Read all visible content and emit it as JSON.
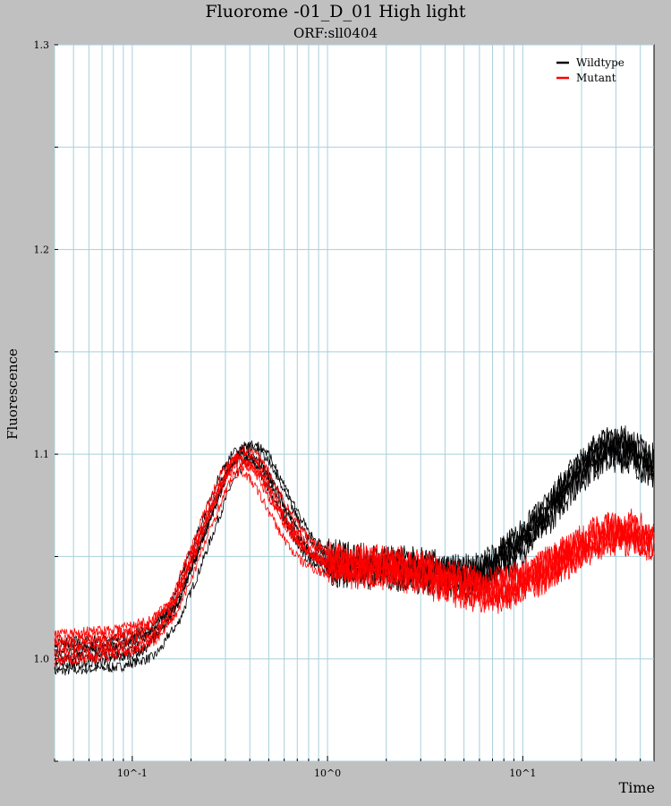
{
  "chart_data": {
    "type": "line",
    "title": "Fluorome -01_D_01 High light",
    "subtitle": "ORF:sll0404",
    "xlabel": "Time",
    "ylabel": "Fluorescence",
    "x_scale": "log",
    "xlim": [
      0.04,
      47
    ],
    "ylim": [
      0.95,
      1.3
    ],
    "yticks": [
      1.0,
      1.1,
      1.2,
      1.3
    ],
    "ytick_labels": [
      "1.0",
      "1.1",
      "1.2",
      "1.3"
    ],
    "xticks": [
      0.1,
      1,
      10
    ],
    "xtick_labels": [
      "10^-1",
      "10^0",
      "10^1"
    ],
    "grid": true,
    "legend_position": "top-right",
    "series": [
      {
        "name": "Wildtype",
        "color": "#000000",
        "x": [
          0.04,
          0.08,
          0.12,
          0.16,
          0.2,
          0.25,
          0.3,
          0.35,
          0.4,
          0.45,
          0.5,
          0.6,
          0.7,
          0.8,
          1.0,
          1.3,
          1.7,
          2.2,
          3.0,
          4.0,
          5.0,
          6.0,
          7.0,
          8.0,
          10.0,
          13.0,
          17.0,
          22.0,
          28.0,
          35.0,
          47.0
        ],
        "y": [
          1.001,
          1.003,
          1.008,
          1.022,
          1.045,
          1.07,
          1.09,
          1.1,
          1.1,
          1.097,
          1.09,
          1.075,
          1.062,
          1.053,
          1.047,
          1.046,
          1.045,
          1.044,
          1.043,
          1.041,
          1.04,
          1.041,
          1.045,
          1.05,
          1.058,
          1.07,
          1.085,
          1.097,
          1.103,
          1.102,
          1.093
        ]
      },
      {
        "name": "Mutant",
        "color": "#ff0000",
        "x": [
          0.04,
          0.08,
          0.12,
          0.16,
          0.2,
          0.25,
          0.3,
          0.35,
          0.4,
          0.45,
          0.5,
          0.6,
          0.7,
          0.8,
          1.0,
          1.3,
          1.7,
          2.2,
          3.0,
          4.0,
          5.0,
          6.0,
          7.0,
          8.0,
          10.0,
          13.0,
          17.0,
          22.0,
          28.0,
          35.0,
          47.0
        ],
        "y": [
          1.005,
          1.008,
          1.012,
          1.025,
          1.048,
          1.072,
          1.09,
          1.097,
          1.096,
          1.09,
          1.082,
          1.068,
          1.058,
          1.052,
          1.047,
          1.046,
          1.045,
          1.044,
          1.042,
          1.038,
          1.036,
          1.034,
          1.033,
          1.034,
          1.038,
          1.043,
          1.05,
          1.057,
          1.062,
          1.062,
          1.057
        ]
      }
    ]
  }
}
